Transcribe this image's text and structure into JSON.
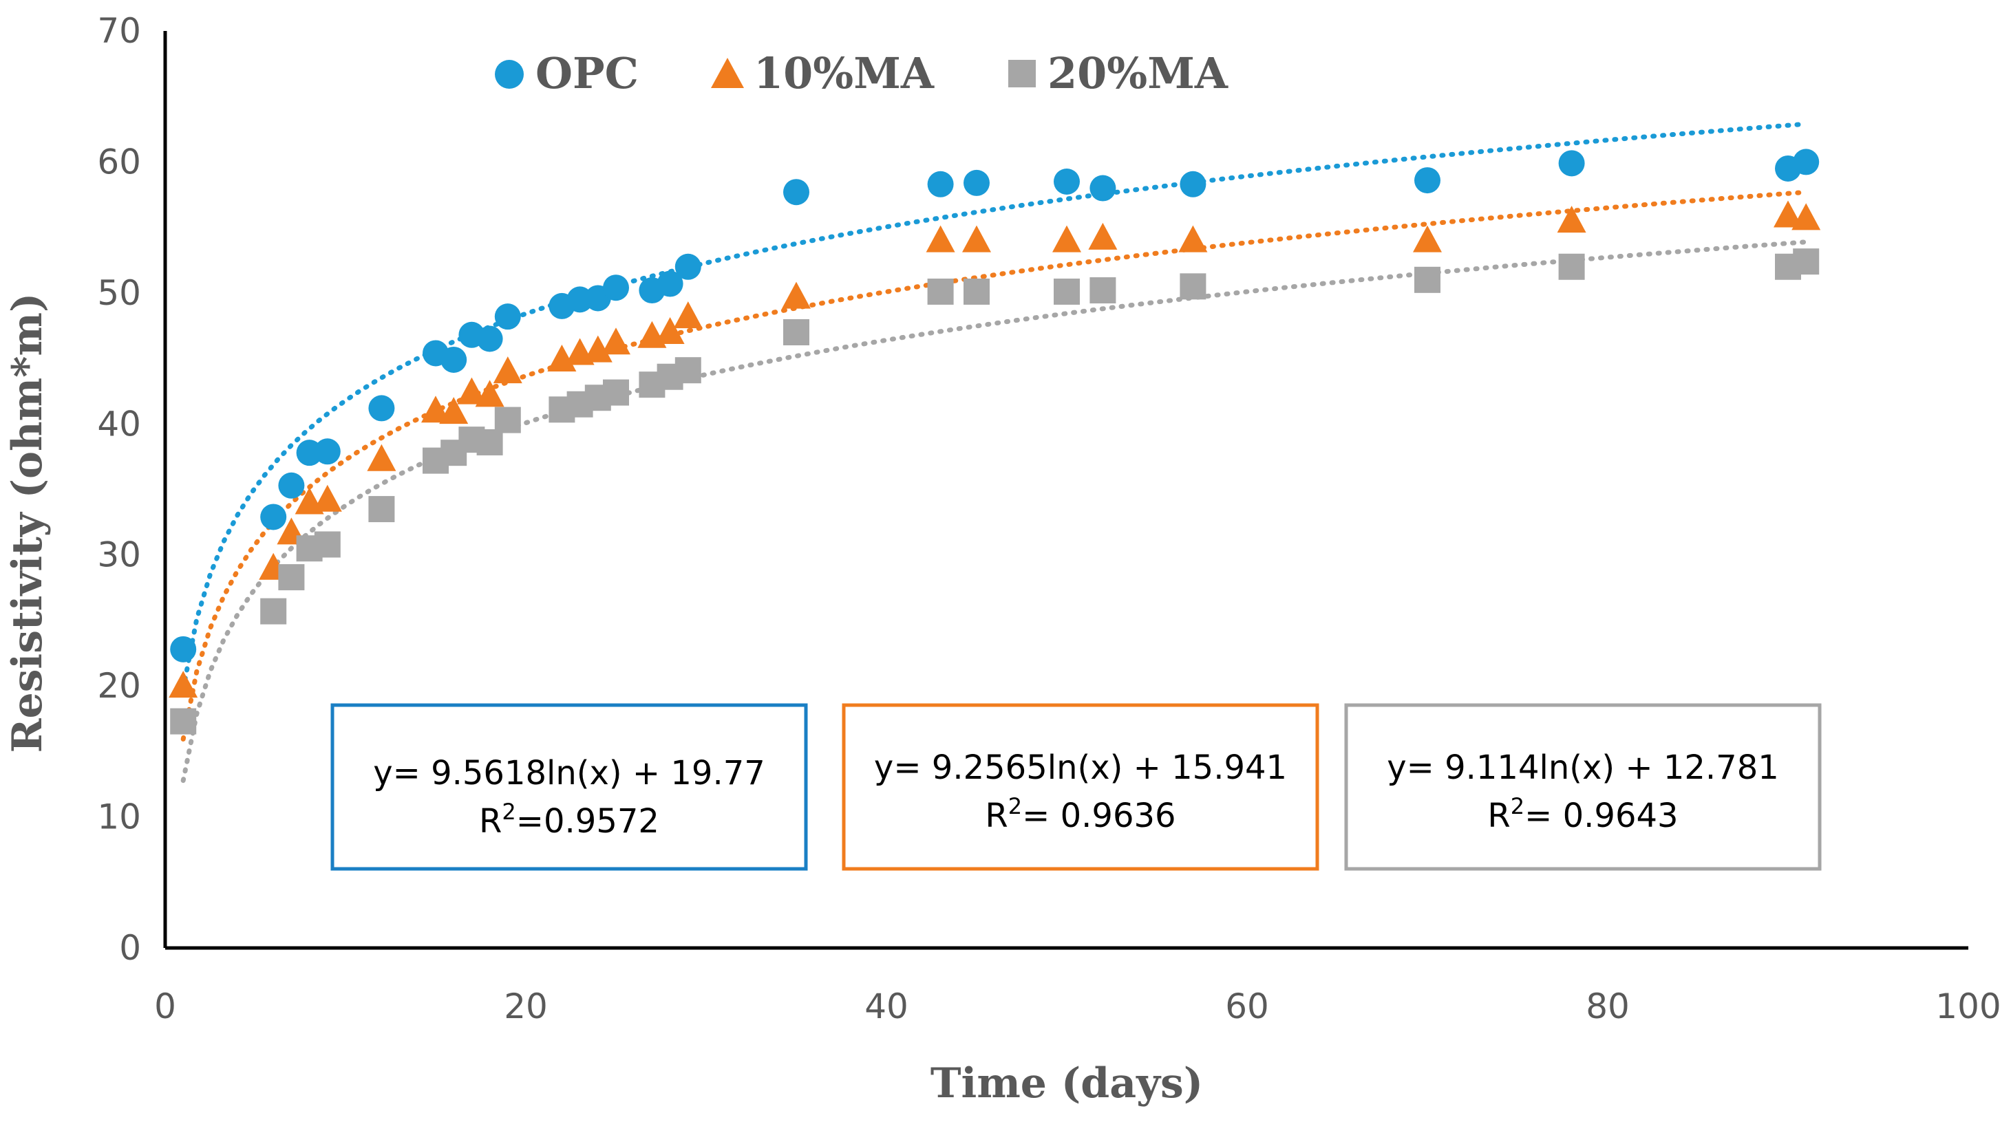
{
  "chart_data": {
    "type": "scatter",
    "title": "",
    "xlabel": "Time (days)",
    "ylabel": "Resistivity (ohm*m)",
    "xlim": [
      0,
      100
    ],
    "ylim": [
      0,
      70
    ],
    "xticks": [
      "0",
      "20",
      "40",
      "60",
      "80",
      "100"
    ],
    "yticks": [
      "0",
      "10",
      "20",
      "30",
      "40",
      "50",
      "60",
      "70"
    ],
    "grid": false,
    "legend_position": "top",
    "series": [
      {
        "name": "OPC",
        "marker": "circle",
        "color": "#1a9ad6",
        "x": [
          1,
          6,
          7,
          8,
          9,
          12,
          15,
          16,
          17,
          18,
          19,
          22,
          23,
          24,
          25,
          27,
          28,
          29,
          35,
          43,
          45,
          50,
          52,
          57,
          70,
          78,
          90,
          91
        ],
        "y": [
          22.8,
          32.9,
          35.3,
          37.8,
          37.9,
          41.2,
          45.4,
          44.9,
          46.8,
          46.5,
          48.2,
          49.0,
          49.5,
          49.6,
          50.4,
          50.2,
          50.7,
          52.0,
          57.7,
          58.3,
          58.4,
          58.5,
          58.0,
          58.3,
          58.6,
          59.9,
          59.5,
          60.0
        ],
        "trend": {
          "a": 9.5618,
          "b": 19.77,
          "equation": "y= 9.5618ln(x) + 19.77",
          "r2_prefix": "R",
          "r2_sup": "2",
          "r2_suffix": "=0.9572"
        }
      },
      {
        "name": "10%MA",
        "marker": "triangle",
        "color": "#f07c1e",
        "x": [
          1,
          6,
          7,
          8,
          9,
          12,
          15,
          16,
          17,
          18,
          19,
          22,
          23,
          24,
          25,
          27,
          28,
          29,
          35,
          43,
          45,
          50,
          52,
          57,
          70,
          78,
          90,
          91
        ],
        "y": [
          20.0,
          29.0,
          31.7,
          34.0,
          34.2,
          37.3,
          41.0,
          40.9,
          42.4,
          42.2,
          44.0,
          44.9,
          45.4,
          45.6,
          46.2,
          46.7,
          47.0,
          48.2,
          49.7,
          54.0,
          54.0,
          54.0,
          54.2,
          54.0,
          54.0,
          55.5,
          55.9,
          55.7
        ],
        "trend": {
          "a": 9.2565,
          "b": 15.941,
          "equation": "y= 9.2565ln(x) + 15.941",
          "r2_prefix": "R",
          "r2_sup": "2",
          "r2_suffix": "= 0.9636"
        }
      },
      {
        "name": "20%MA",
        "marker": "square",
        "color": "#a6a6a6",
        "x": [
          1,
          6,
          7,
          8,
          9,
          12,
          15,
          16,
          17,
          18,
          19,
          22,
          23,
          24,
          25,
          27,
          28,
          29,
          35,
          43,
          45,
          50,
          52,
          57,
          70,
          78,
          90,
          91
        ],
        "y": [
          17.3,
          25.7,
          28.3,
          30.5,
          30.8,
          33.5,
          37.2,
          37.8,
          38.8,
          38.6,
          40.3,
          41.1,
          41.5,
          42.0,
          42.4,
          43.0,
          43.6,
          44.1,
          47.0,
          50.1,
          50.1,
          50.1,
          50.2,
          50.5,
          51.0,
          52.0,
          52.0,
          52.4
        ],
        "trend": {
          "a": 9.114,
          "b": 12.781,
          "equation": "y= 9.114ln(x) + 12.781",
          "r2_prefix": "R",
          "r2_sup": "2",
          "r2_suffix": "= 0.9643"
        }
      }
    ]
  }
}
